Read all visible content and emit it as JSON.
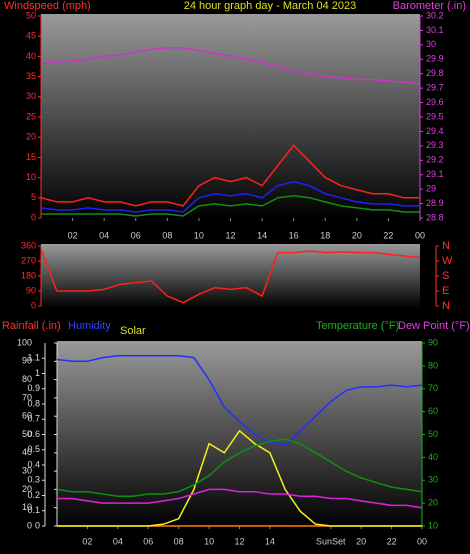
{
  "chart_data": [
    {
      "type": "line",
      "title": "24 hour graph day - March 04 2023",
      "ylabel": "Windspeed (mph)",
      "y2label": "Barometer (.in)",
      "x": [
        0,
        1,
        2,
        3,
        4,
        5,
        6,
        7,
        8,
        9,
        10,
        11,
        12,
        13,
        14,
        15,
        16,
        17,
        18,
        19,
        20,
        21,
        22,
        23,
        24
      ],
      "xlim": [
        0,
        24
      ],
      "xticks": [
        {
          "value": 2,
          "label": "02"
        },
        {
          "value": 4,
          "label": "04"
        },
        {
          "value": 6,
          "label": "06"
        },
        {
          "value": 8,
          "label": "08"
        },
        10,
        12,
        14,
        16,
        18,
        20,
        22,
        {
          "value": 24,
          "label": "00"
        }
      ],
      "ylim": [
        0,
        50
      ],
      "yticks": [
        0,
        5,
        10,
        15,
        20,
        25,
        30,
        35,
        40,
        45,
        50
      ],
      "y2lim": [
        28.8,
        30.2
      ],
      "y2ticks": [
        28.8,
        28.9,
        29,
        29.1,
        29.2,
        29.3,
        29.4,
        29.5,
        29.6,
        29.7,
        29.8,
        29.9,
        30,
        30.1,
        30.2
      ],
      "series": [
        {
          "color": "#ff2020",
          "values": [
            5,
            4,
            4,
            5,
            4,
            4,
            3,
            4,
            4,
            3,
            8,
            10,
            9,
            10,
            8,
            13,
            18,
            14,
            10,
            8,
            7,
            6,
            6,
            5,
            5
          ]
        },
        {
          "color": "#2020ff",
          "values": [
            2.5,
            2,
            2,
            2.5,
            2,
            2,
            1.5,
            2,
            2,
            1.5,
            5,
            6,
            5.5,
            6,
            5,
            8,
            9,
            8,
            6,
            5,
            4,
            3.5,
            3.5,
            3,
            3
          ]
        },
        {
          "color": "#109010",
          "values": [
            1,
            1,
            1,
            1,
            1,
            1,
            0.5,
            1,
            1,
            0.5,
            3,
            3.5,
            3,
            3.5,
            3,
            5,
            5.5,
            5,
            4,
            3,
            2.5,
            2,
            2,
            1.5,
            1.5
          ]
        },
        {
          "color": "#d030d0",
          "axis": "y2",
          "values": [
            29.87,
            29.88,
            29.89,
            29.9,
            29.92,
            29.93,
            29.95,
            29.97,
            29.98,
            29.98,
            29.96,
            29.94,
            29.92,
            29.9,
            29.88,
            29.85,
            29.82,
            29.8,
            29.78,
            29.77,
            29.76,
            29.76,
            29.75,
            29.74,
            29.73
          ]
        }
      ]
    },
    {
      "type": "line",
      "x": [
        0,
        1,
        2,
        3,
        4,
        5,
        6,
        7,
        8,
        9,
        10,
        11,
        12,
        13,
        14,
        15,
        16,
        17,
        18,
        19,
        20,
        21,
        22,
        23,
        24
      ],
      "xlim": [
        0,
        24
      ],
      "ylim": [
        0,
        360
      ],
      "yticks": [
        0,
        90,
        180,
        270,
        360
      ],
      "y2lim": [
        0,
        360
      ],
      "y2ticks": [
        {
          "value": 360,
          "label": "N"
        },
        {
          "value": 270,
          "label": "W"
        },
        {
          "value": 180,
          "label": "S"
        },
        {
          "value": 90,
          "label": "E"
        },
        {
          "value": 0,
          "label": "N"
        }
      ],
      "series": [
        {
          "color": "#ff2020",
          "values": [
            340,
            90,
            90,
            90,
            100,
            130,
            140,
            150,
            60,
            20,
            70,
            110,
            100,
            110,
            60,
            320,
            320,
            330,
            320,
            325,
            320,
            320,
            310,
            300,
            290
          ]
        }
      ]
    },
    {
      "type": "line",
      "x": [
        0,
        1,
        2,
        3,
        4,
        5,
        6,
        7,
        8,
        9,
        10,
        11,
        12,
        13,
        14,
        15,
        16,
        17,
        18,
        19,
        20,
        21,
        22,
        23,
        24
      ],
      "xlim": [
        0,
        24
      ],
      "xticks": [
        {
          "value": 2,
          "label": "02"
        },
        {
          "value": 4,
          "label": "04"
        },
        {
          "value": 6,
          "label": "06"
        },
        {
          "value": 8,
          "label": "08"
        },
        10,
        12,
        14,
        {
          "value": 18,
          "label": "SunSet"
        },
        20,
        22,
        {
          "value": 24,
          "label": "00"
        }
      ],
      "ylim": [
        0,
        1.2
      ],
      "yticks": [
        0,
        0.1,
        0.2,
        0.3,
        0.4,
        0.5,
        0.6,
        0.7,
        0.8,
        0.9,
        1,
        1.1
      ],
      "y3lim": [
        0,
        100
      ],
      "y3ticks": [
        0,
        10,
        20,
        30,
        40,
        50,
        60,
        70,
        80,
        90,
        100
      ],
      "y2lim": [
        10,
        90
      ],
      "y2ticks": [
        10,
        20,
        30,
        40,
        50,
        60,
        70,
        80,
        90
      ],
      "series": [
        {
          "name": "Rainfall (.in)",
          "color": "#ff8000",
          "values": [
            0,
            0,
            0,
            0,
            0,
            0,
            0,
            0,
            0,
            0,
            0,
            0,
            0,
            0,
            0,
            0,
            0,
            0,
            0,
            0,
            0,
            0,
            0,
            0,
            0
          ]
        },
        {
          "name": "Humidity",
          "color": "#2030ff",
          "axis": "y3",
          "values": [
            91,
            90,
            90,
            92,
            93,
            93,
            93,
            93,
            93,
            92,
            80,
            65,
            57,
            50,
            46,
            44,
            52,
            60,
            68,
            74,
            76,
            76,
            77,
            76,
            77
          ]
        },
        {
          "name": "Solar",
          "color": "#f0f020",
          "axis": "y3",
          "values": [
            0,
            0,
            0,
            0,
            0,
            0,
            0,
            1,
            4,
            20,
            45,
            40,
            52,
            45,
            40,
            20,
            8,
            1,
            0,
            0,
            0,
            0,
            0,
            0,
            0
          ]
        },
        {
          "name": "Temperature (°F)",
          "color": "#109010",
          "axis": "y2",
          "values": [
            26,
            25,
            25,
            24,
            23,
            23,
            24,
            24,
            25,
            28,
            32,
            38,
            42,
            45,
            47,
            48,
            46,
            42,
            38,
            34,
            31,
            29,
            27,
            26,
            25
          ]
        },
        {
          "name": "Dew Point (°F)",
          "color": "#e020e0",
          "axis": "y2",
          "values": [
            22,
            22,
            21,
            20,
            20,
            20,
            20,
            21,
            22,
            24,
            26,
            26,
            25,
            25,
            24,
            24,
            23,
            23,
            22,
            22,
            21,
            20,
            19,
            19,
            18
          ]
        }
      ]
    }
  ]
}
